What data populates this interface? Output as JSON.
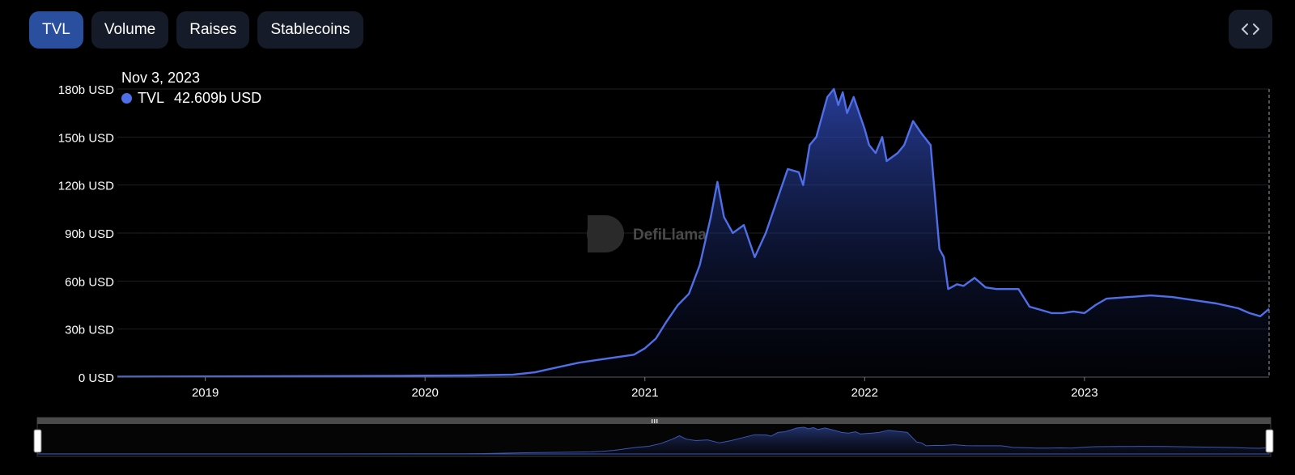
{
  "tabs": [
    {
      "label": "TVL",
      "active": true
    },
    {
      "label": "Volume",
      "active": false
    },
    {
      "label": "Raises",
      "active": false
    },
    {
      "label": "Stablecoins",
      "active": false
    }
  ],
  "embed_icon": "code-icon",
  "tooltip": {
    "date": "Nov 3, 2023",
    "series_label": "TVL",
    "value": "42.609b USD"
  },
  "watermark": "DefiLlama",
  "colors": {
    "line": "#4f6fe8",
    "active_tab": "#2a4f9f",
    "button": "#151b28"
  },
  "chart_data": {
    "type": "area",
    "ytick_labels": [
      "0 USD",
      "30b USD",
      "60b USD",
      "90b USD",
      "120b USD",
      "150b USD",
      "180b USD"
    ],
    "yticks": [
      0,
      30,
      60,
      90,
      120,
      150,
      180
    ],
    "ylim": [
      0,
      180
    ],
    "xtick_labels": [
      "2019",
      "2020",
      "2021",
      "2022",
      "2023"
    ],
    "xticks": [
      2019,
      2020,
      2021,
      2022,
      2023
    ],
    "xlim": [
      2018.6,
      2023.84
    ],
    "grid": true,
    "series": [
      {
        "name": "TVL",
        "x": [
          2018.6,
          2019.0,
          2019.5,
          2019.9,
          2020.2,
          2020.4,
          2020.5,
          2020.6,
          2020.7,
          2020.8,
          2020.9,
          2020.95,
          2021.0,
          2021.05,
          2021.1,
          2021.15,
          2021.2,
          2021.25,
          2021.3,
          2021.33,
          2021.36,
          2021.4,
          2021.45,
          2021.5,
          2021.55,
          2021.6,
          2021.65,
          2021.7,
          2021.72,
          2021.75,
          2021.78,
          2021.8,
          2021.83,
          2021.86,
          2021.88,
          2021.9,
          2021.92,
          2021.95,
          2022.0,
          2022.02,
          2022.05,
          2022.08,
          2022.1,
          2022.15,
          2022.18,
          2022.22,
          2022.26,
          2022.3,
          2022.34,
          2022.36,
          2022.38,
          2022.42,
          2022.45,
          2022.5,
          2022.55,
          2022.6,
          2022.7,
          2022.75,
          2022.8,
          2022.85,
          2022.9,
          2022.95,
          2023.0,
          2023.05,
          2023.1,
          2023.2,
          2023.3,
          2023.4,
          2023.5,
          2023.6,
          2023.7,
          2023.75,
          2023.8,
          2023.84
        ],
        "values": [
          0.3,
          0.4,
          0.6,
          0.8,
          1.0,
          1.5,
          3,
          6,
          9,
          11,
          13,
          14,
          18,
          24,
          35,
          45,
          52,
          70,
          100,
          122,
          100,
          90,
          95,
          75,
          90,
          110,
          130,
          128,
          120,
          145,
          150,
          160,
          175,
          180,
          170,
          178,
          165,
          175,
          155,
          145,
          140,
          150,
          135,
          140,
          145,
          160,
          152,
          145,
          80,
          75,
          55,
          58,
          57,
          62,
          56,
          55,
          55,
          44,
          42,
          40,
          40,
          41,
          40,
          45,
          49,
          50,
          51,
          50,
          48,
          46,
          43,
          40,
          38,
          42.6
        ]
      }
    ]
  }
}
